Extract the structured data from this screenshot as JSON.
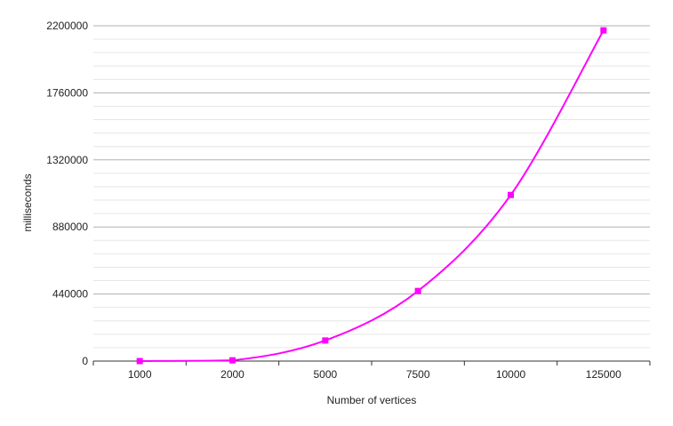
{
  "chart_data": {
    "type": "line",
    "title": "",
    "xlabel": "Number of vertices",
    "ylabel": "milliseconds",
    "categories": [
      "1000",
      "2000",
      "5000",
      "7500",
      "10000",
      "125000"
    ],
    "series": [
      {
        "name": "",
        "values": [
          0,
          5000,
          135000,
          460000,
          1090000,
          2170000
        ]
      }
    ],
    "ylim": [
      0,
      2200000
    ],
    "yticks": [
      0,
      440000,
      880000,
      1320000,
      1760000,
      2200000
    ],
    "ytick_labels": [
      "0",
      "440000",
      "880000",
      "1320000",
      "1760000",
      "2200000"
    ],
    "grid": true,
    "minor_grid": true,
    "legend": "none",
    "line_style": "smooth",
    "marker": "square",
    "colors": {
      "series": "#ff00ff",
      "major_grid": "#b0b0b0",
      "minor_grid": "#e6e6e6",
      "axis": "#333333"
    }
  }
}
